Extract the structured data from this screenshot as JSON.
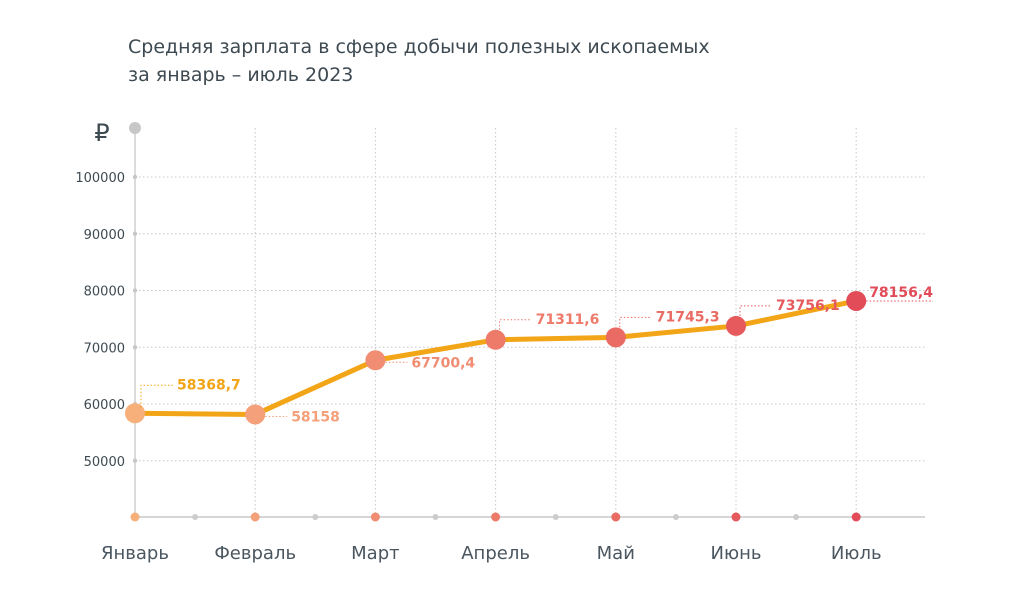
{
  "chart_data": {
    "type": "line",
    "title": "Средняя зарплата в сфере добычи полезных ископаемых за январь – июль 2023",
    "title_lines": [
      "Средняя зарплата в сфере добычи полезных ископаемых",
      "за январь – июль 2023"
    ],
    "unit_symbol": "₽",
    "categories": [
      "Январь",
      "Февраль",
      "Март",
      "Апрель",
      "Май",
      "Июнь",
      "Июль"
    ],
    "values": [
      58368.7,
      58158,
      67700.4,
      71311.6,
      71745.3,
      73756.1,
      78156.4
    ],
    "value_labels": [
      "58368,7",
      "58158",
      "67700,4",
      "71311,6",
      "71745,3",
      "73756,1",
      "78156,4"
    ],
    "y_ticks": [
      50000,
      60000,
      70000,
      80000,
      90000,
      100000
    ],
    "y_tick_labels": [
      "50000",
      "60000",
      "70000",
      "80000",
      "90000",
      "100000"
    ],
    "ylim": [
      40000,
      108000
    ],
    "xlabel": "",
    "ylabel": "₽",
    "line_color": "#f2a516",
    "point_colors": [
      "#f7b07a",
      "#f4a07a",
      "#f08d72",
      "#ee7a6a",
      "#ea6a64",
      "#e65a5e",
      "#e24b58"
    ],
    "grid_color": "#c8c8c8"
  }
}
